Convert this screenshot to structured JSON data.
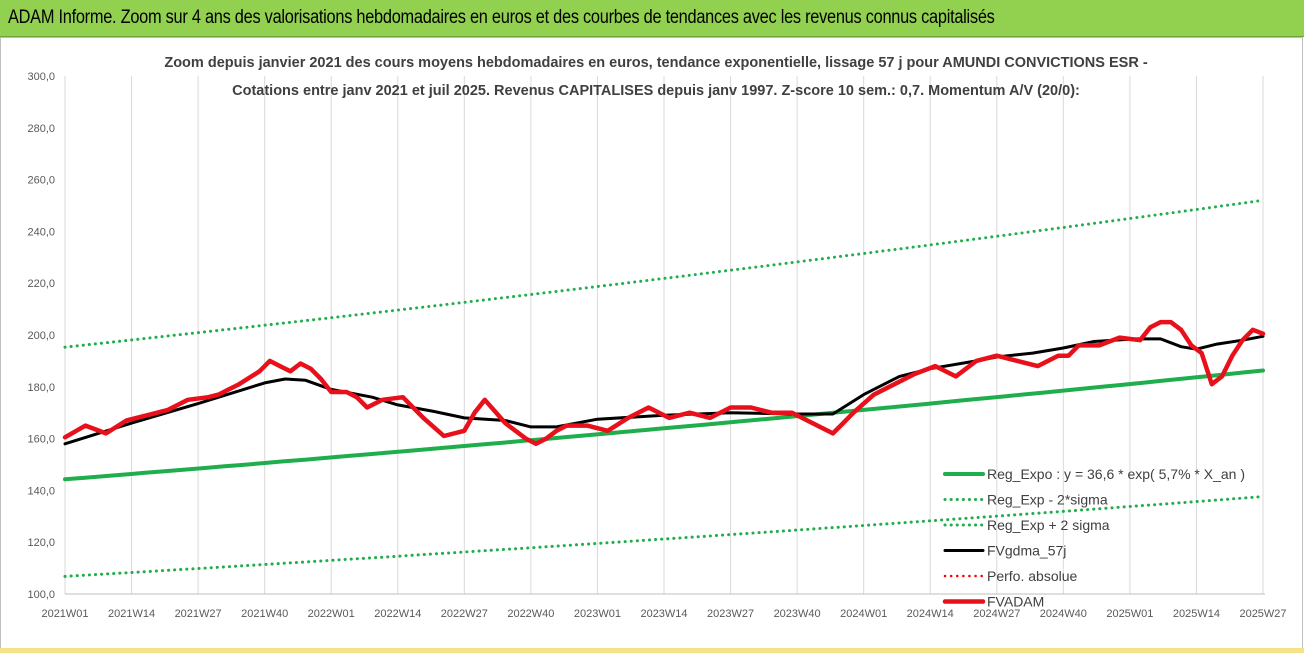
{
  "header": {
    "title": "ADAM Informe. Zoom sur 4 ans des valorisations hebdomadaires en euros et des courbes de tendances avec les revenus connus capitalisés"
  },
  "colors": {
    "banner": "#92d050",
    "reg_expo": "#1fae4b",
    "sigma_lines": "#1fae4b",
    "fvgdma": "#000000",
    "perfo": "#ff0000",
    "fvadam": "#e8101a"
  },
  "chart_data": {
    "type": "line",
    "title": "Zoom depuis janvier 2021 des cours moyens hebdomadaires en euros, tendance exponentielle, lissage 57 j pour AMUNDI CONVICTIONS ESR -",
    "subtitle": "Cotations entre janv 2021 et juil 2025. Revenus CAPITALISES depuis janv 1997. Z-score 10 sem.: 0,7. Momentum A/V (20/0):",
    "xlabel": "",
    "ylabel": "",
    "ylim": [
      100,
      300
    ],
    "yticks": [
      "100,0",
      "120,0",
      "140,0",
      "160,0",
      "180,0",
      "200,0",
      "220,0",
      "240,0",
      "260,0",
      "280,0",
      "300,0"
    ],
    "xticks": [
      "2021W01",
      "2021W14",
      "2021W27",
      "2021W40",
      "2022W01",
      "2022W14",
      "2022W27",
      "2022W40",
      "2023W01",
      "2023W14",
      "2023W27",
      "2023W40",
      "2024W01",
      "2024W14",
      "2024W27",
      "2024W40",
      "2025W01",
      "2025W14",
      "2025W27"
    ],
    "grid": "vertical",
    "legend_position": "bottom-right",
    "series": [
      {
        "name": "Reg_Expo : y = 36,6 * exp( 5,7% *  X_an )",
        "style": "solid",
        "x": [
          0,
          234
        ],
        "values": [
          144.3,
          186.3
        ]
      },
      {
        "name": "Reg_Exp - 2*sigma",
        "style": "dotted",
        "x": [
          0,
          234
        ],
        "values": [
          106.8,
          137.6
        ]
      },
      {
        "name": "Reg_Exp + 2 sigma",
        "style": "dotted",
        "x": [
          0,
          234
        ],
        "values": [
          195.3,
          252.0
        ]
      },
      {
        "name": "FVgdma_57j",
        "style": "solid",
        "x": [
          0,
          13,
          26,
          39,
          43,
          47,
          52,
          60,
          65,
          72,
          78,
          86,
          91,
          96,
          104,
          117,
          130,
          143,
          150,
          156,
          163,
          169,
          178,
          182,
          189,
          195,
          201,
          209,
          214,
          218,
          221,
          225,
          230,
          234
        ],
        "values": [
          158,
          166,
          173.5,
          181.5,
          183,
          182.5,
          179,
          176,
          173,
          170.5,
          168,
          167,
          164.5,
          164.5,
          167.5,
          169,
          170,
          169.5,
          169.5,
          177,
          184,
          187,
          190,
          191.5,
          193,
          195,
          197.5,
          198.5,
          198.5,
          195.5,
          194.5,
          196.5,
          198,
          199.5
        ]
      },
      {
        "name": "Perfo. absolue",
        "style": "dotted",
        "x": [],
        "values": []
      },
      {
        "name": "FVADAM",
        "style": "solid",
        "x": [
          0,
          4,
          8,
          12,
          16,
          20,
          24,
          28,
          30,
          32,
          34,
          38,
          40,
          42,
          44,
          46,
          48,
          50,
          52,
          55,
          57,
          59,
          62,
          66,
          70,
          74,
          78,
          80,
          82,
          86,
          90,
          92,
          94,
          96,
          98,
          102,
          106,
          110,
          114,
          118,
          122,
          126,
          130,
          134,
          138,
          142,
          146,
          150,
          152,
          154,
          158,
          162,
          166,
          170,
          174,
          178,
          182,
          186,
          190,
          194,
          196,
          198,
          202,
          206,
          210,
          212,
          214,
          216,
          218,
          220,
          222,
          224,
          226,
          228,
          230,
          232,
          234
        ],
        "values": [
          160.5,
          165,
          162,
          167,
          169,
          171,
          175,
          176,
          177,
          179,
          181,
          186,
          190,
          188,
          186,
          189,
          187,
          183,
          178,
          178,
          176,
          172,
          175,
          176,
          168,
          161,
          163,
          170,
          175,
          166,
          160,
          158,
          160,
          163,
          165,
          165,
          163,
          168,
          172,
          168,
          170,
          168,
          172,
          172,
          170,
          170,
          166,
          162,
          166,
          170,
          177,
          181,
          185,
          188,
          184,
          190,
          192,
          190,
          188,
          192,
          192,
          196,
          196,
          199,
          198,
          203,
          205,
          205,
          202,
          196,
          193,
          181,
          184,
          192,
          198,
          202,
          200.5
        ]
      }
    ]
  }
}
